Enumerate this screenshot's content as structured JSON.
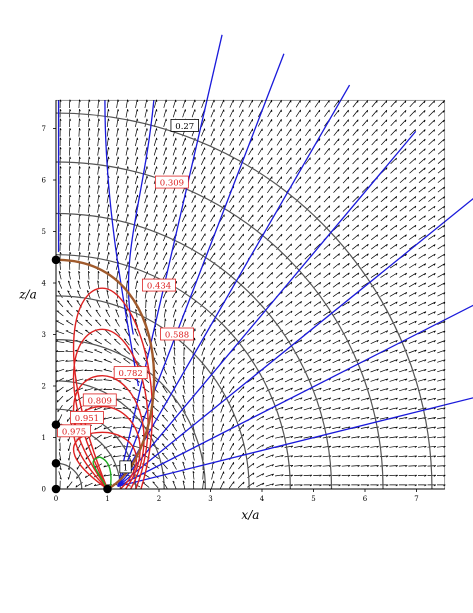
{
  "chart_data": {
    "type": "line",
    "xlabel": "x/a",
    "ylabel": "z/a",
    "xlim": [
      0,
      7.55
    ],
    "ylim": [
      0,
      7.55
    ],
    "x_ticks": [
      "0",
      "1",
      "2",
      "3",
      "4",
      "5",
      "6",
      "7"
    ],
    "y_ticks": [
      "0",
      "1",
      "2",
      "3",
      "4",
      "5",
      "6",
      "7"
    ],
    "background_field": "vector-field arrows",
    "colors": {
      "equipotential": "#555555",
      "field_line": "#1a1adb",
      "field_line_highlight": "#22aa22",
      "contour": "#dd2222",
      "separatrix": "#a05a2c"
    },
    "equipotential_radii": [
      0.5,
      1.25,
      1.55,
      2.1,
      2.9,
      3.75,
      4.55,
      5.35,
      6.35,
      7.3
    ],
    "field_line_angles_deg": [
      14,
      27,
      39,
      50,
      60,
      69,
      77
    ],
    "separatrix": {
      "x_intercept": 1.0,
      "z_intercept": 4.45
    },
    "contour_labels": [
      {
        "text": "0.27",
        "x": 2.5,
        "z": 7.05,
        "color": "#000000"
      },
      {
        "text": "0.309",
        "x": 2.25,
        "z": 5.95,
        "color": "#dd2222"
      },
      {
        "text": "0.434",
        "x": 2.0,
        "z": 3.95,
        "color": "#dd2222"
      },
      {
        "text": "0.588",
        "x": 2.35,
        "z": 3.0,
        "color": "#dd2222"
      },
      {
        "text": "0.782",
        "x": 1.45,
        "z": 2.25,
        "color": "#dd2222"
      },
      {
        "text": "0.809",
        "x": 0.85,
        "z": 1.72,
        "color": "#dd2222"
      },
      {
        "text": "0.951",
        "x": 0.6,
        "z": 1.38,
        "color": "#dd2222"
      },
      {
        "text": "0.975",
        "x": 0.35,
        "z": 1.12,
        "color": "#dd2222"
      },
      {
        "text": "1",
        "x": 1.35,
        "z": 0.42,
        "color": "#000000"
      }
    ],
    "points": [
      {
        "x": 0,
        "z": 0
      },
      {
        "x": 1,
        "z": 0
      },
      {
        "x": 0,
        "z": 0.5
      },
      {
        "x": 0,
        "z": 1.25
      },
      {
        "x": 0,
        "z": 4.45
      }
    ]
  }
}
